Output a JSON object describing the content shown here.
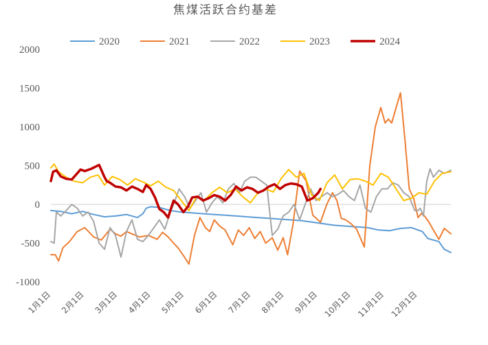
{
  "chart_data": {
    "type": "line",
    "title": "焦煤活跃合约基差",
    "xlabel": "",
    "ylabel": "",
    "ylim": [
      -1000,
      2000
    ],
    "yticks": [
      2000,
      1500,
      1000,
      500,
      0,
      -500,
      -1000
    ],
    "x_ticks": [
      "1月1日",
      "2月1日",
      "3月1日",
      "4月1日",
      "5月1日",
      "6月1日",
      "7月1日",
      "8月1日",
      "9月1日",
      "10月1日",
      "11月1日",
      "12月1日"
    ],
    "legend_position": "top",
    "grid": false,
    "x_unit": "day of year",
    "series": [
      {
        "name": "2020",
        "color": "#5b9bd5",
        "width": 2,
        "x": [
          1,
          10,
          20,
          30,
          40,
          50,
          60,
          70,
          80,
          85,
          88,
          92,
          100,
          110,
          120,
          130,
          140,
          150,
          160,
          170,
          180,
          190,
          200,
          210,
          220,
          230,
          240,
          250,
          260,
          270,
          280,
          290,
          300,
          310,
          320,
          330,
          340,
          345,
          350,
          355,
          360,
          366
        ],
        "y": [
          -80,
          -90,
          -120,
          -90,
          -130,
          -160,
          -150,
          -130,
          -170,
          -120,
          -50,
          -30,
          -40,
          -80,
          -100,
          -110,
          -120,
          -130,
          -140,
          -150,
          -160,
          -170,
          -180,
          -190,
          -200,
          -210,
          -230,
          -250,
          -270,
          -280,
          -290,
          -300,
          -330,
          -340,
          -310,
          -300,
          -350,
          -440,
          -460,
          -480,
          -580,
          -620
        ]
      },
      {
        "name": "2021",
        "color": "#ed7d31",
        "width": 2,
        "x": [
          1,
          5,
          8,
          12,
          18,
          25,
          32,
          40,
          47,
          55,
          60,
          65,
          70,
          75,
          82,
          90,
          98,
          103,
          108,
          113,
          117,
          122,
          127,
          132,
          137,
          142,
          146,
          150,
          155,
          160,
          167,
          172,
          177,
          182,
          187,
          192,
          197,
          203,
          208,
          213,
          217,
          222,
          228,
          234,
          240,
          247,
          253,
          258,
          262,
          266,
          270,
          275,
          280,
          287,
          292,
          297,
          302,
          306,
          309,
          312,
          316,
          320,
          324,
          328,
          332,
          336,
          339,
          342,
          346,
          350,
          355,
          360,
          366
        ],
        "y": [
          -650,
          -650,
          -730,
          -560,
          -480,
          -350,
          -300,
          -420,
          -460,
          -320,
          -380,
          -410,
          -350,
          -380,
          -420,
          -400,
          -450,
          -360,
          -420,
          -500,
          -560,
          -660,
          -770,
          -400,
          -170,
          -300,
          -350,
          -200,
          -280,
          -330,
          -520,
          -330,
          -400,
          -300,
          -440,
          -350,
          -500,
          -430,
          -590,
          -430,
          -650,
          -250,
          430,
          300,
          -140,
          -230,
          10,
          150,
          50,
          -180,
          -200,
          -250,
          -320,
          -550,
          500,
          1000,
          1250,
          1050,
          1100,
          1050,
          1250,
          1440,
          850,
          200,
          80,
          -170,
          -120,
          -150,
          -230,
          -330,
          -450,
          -310,
          -380
        ]
      },
      {
        "name": "2022",
        "color": "#a5a5a5",
        "width": 2,
        "x": [
          1,
          4,
          6,
          10,
          15,
          20,
          25,
          30,
          35,
          40,
          45,
          50,
          55,
          60,
          65,
          70,
          75,
          80,
          85,
          90,
          95,
          100,
          105,
          110,
          113,
          118,
          123,
          128,
          133,
          138,
          143,
          148,
          153,
          158,
          163,
          168,
          173,
          178,
          183,
          188,
          193,
          198,
          203,
          208,
          213,
          218,
          223,
          228,
          233,
          238,
          243,
          248,
          253,
          258,
          263,
          268,
          273,
          278,
          283,
          288,
          293,
          298,
          303,
          308,
          313,
          318,
          323,
          328,
          333,
          336,
          338,
          341,
          344,
          347,
          350,
          355,
          360,
          366
        ],
        "y": [
          -480,
          -500,
          -100,
          -150,
          -80,
          0,
          -50,
          -150,
          -100,
          -220,
          -500,
          -580,
          -300,
          -400,
          -680,
          -350,
          -200,
          -450,
          -480,
          -400,
          -300,
          -200,
          -320,
          -100,
          0,
          200,
          100,
          -50,
          50,
          150,
          -100,
          20,
          100,
          20,
          200,
          270,
          150,
          300,
          350,
          350,
          300,
          250,
          -400,
          -320,
          -150,
          -100,
          0,
          -200,
          0,
          200,
          50,
          100,
          150,
          100,
          130,
          180,
          100,
          50,
          250,
          -50,
          -100,
          100,
          200,
          200,
          280,
          250,
          150,
          100,
          -80,
          -80,
          -50,
          -150,
          300,
          460,
          350,
          440,
          400,
          440
        ]
      },
      {
        "name": "2023",
        "color": "#ffc000",
        "width": 2,
        "x": [
          1,
          4,
          8,
          15,
          22,
          30,
          37,
          44,
          50,
          57,
          64,
          71,
          78,
          85,
          92,
          99,
          106,
          113,
          120,
          127,
          134,
          141,
          148,
          155,
          162,
          169,
          176,
          183,
          190,
          197,
          204,
          211,
          218,
          225,
          232,
          239,
          246,
          253,
          260,
          267,
          274,
          281,
          288,
          295,
          302,
          309,
          316,
          323,
          330,
          337,
          344,
          351,
          358,
          366
        ],
        "y": [
          470,
          520,
          420,
          350,
          300,
          280,
          350,
          380,
          250,
          360,
          320,
          250,
          330,
          290,
          240,
          300,
          220,
          180,
          50,
          -80,
          100,
          50,
          150,
          220,
          150,
          200,
          100,
          20,
          150,
          200,
          160,
          330,
          450,
          350,
          400,
          120,
          50,
          280,
          380,
          200,
          320,
          330,
          300,
          250,
          400,
          350,
          200,
          50,
          80,
          150,
          130,
          300,
          400,
          420
        ]
      },
      {
        "name": "2024",
        "color": "#c00000",
        "width": 3.5,
        "x": [
          1,
          3,
          6,
          10,
          15,
          20,
          25,
          28,
          32,
          38,
          45,
          50,
          52,
          55,
          60,
          65,
          70,
          75,
          80,
          85,
          88,
          92,
          96,
          100,
          104,
          108,
          110,
          113,
          117,
          122,
          126,
          130,
          135,
          140,
          145,
          150,
          155,
          160,
          165,
          170,
          175,
          180,
          185,
          190,
          195,
          200,
          205,
          210,
          215,
          220,
          225,
          230,
          235,
          240,
          245,
          247
        ],
        "y": [
          300,
          420,
          440,
          360,
          330,
          320,
          400,
          450,
          430,
          460,
          510,
          350,
          300,
          280,
          230,
          220,
          180,
          230,
          200,
          160,
          250,
          200,
          90,
          -60,
          -100,
          -170,
          -80,
          50,
          0,
          -100,
          -30,
          90,
          100,
          50,
          80,
          120,
          100,
          50,
          120,
          230,
          180,
          220,
          200,
          150,
          180,
          230,
          260,
          200,
          250,
          270,
          260,
          230,
          50,
          80,
          150,
          200
        ]
      }
    ]
  }
}
